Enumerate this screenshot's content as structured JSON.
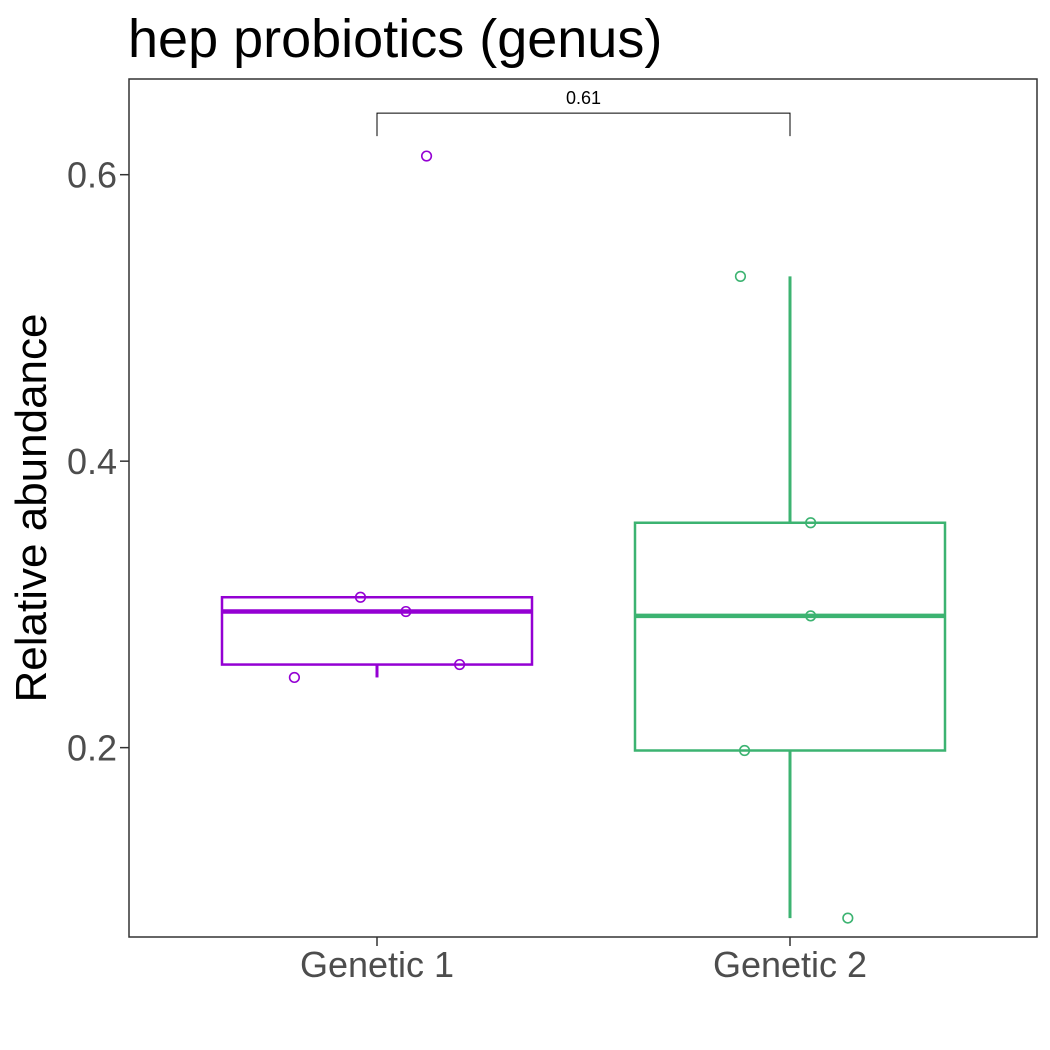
{
  "chart_data": {
    "type": "box",
    "title": "hep probiotics (genus)",
    "xlabel": "",
    "ylabel": "Relative abundance",
    "ylim": [
      0.0678,
      0.6668
    ],
    "yticks": [
      0.2,
      0.4,
      0.6
    ],
    "ytick_labels": [
      "0.2",
      "0.4",
      "0.6"
    ],
    "categories": [
      "Genetic 1",
      "Genetic 2"
    ],
    "grid": false,
    "legend": "none",
    "groups": [
      {
        "category": "Genetic 1",
        "color": "#9400D3",
        "box": {
          "q1": 0.258,
          "median": 0.295,
          "q3": 0.305,
          "whisker_low": 0.249,
          "whisker_high": 0.305
        },
        "points": [
          {
            "jitter": 0.12,
            "y": 0.613
          },
          {
            "jitter": -0.04,
            "y": 0.305
          },
          {
            "jitter": 0.07,
            "y": 0.295
          },
          {
            "jitter": 0.2,
            "y": 0.258
          },
          {
            "jitter": -0.2,
            "y": 0.249
          }
        ]
      },
      {
        "category": "Genetic 2",
        "color": "#3CB371",
        "box": {
          "q1": 0.198,
          "median": 0.292,
          "q3": 0.357,
          "whisker_low": 0.081,
          "whisker_high": 0.529
        },
        "points": [
          {
            "jitter": -0.12,
            "y": 0.529
          },
          {
            "jitter": 0.05,
            "y": 0.357
          },
          {
            "jitter": 0.05,
            "y": 0.292
          },
          {
            "jitter": -0.11,
            "y": 0.198
          },
          {
            "jitter": 0.14,
            "y": 0.081
          }
        ]
      }
    ],
    "comparison": {
      "from": "Genetic 1",
      "to": "Genetic 2",
      "label": "0.61",
      "y": 0.643
    }
  }
}
